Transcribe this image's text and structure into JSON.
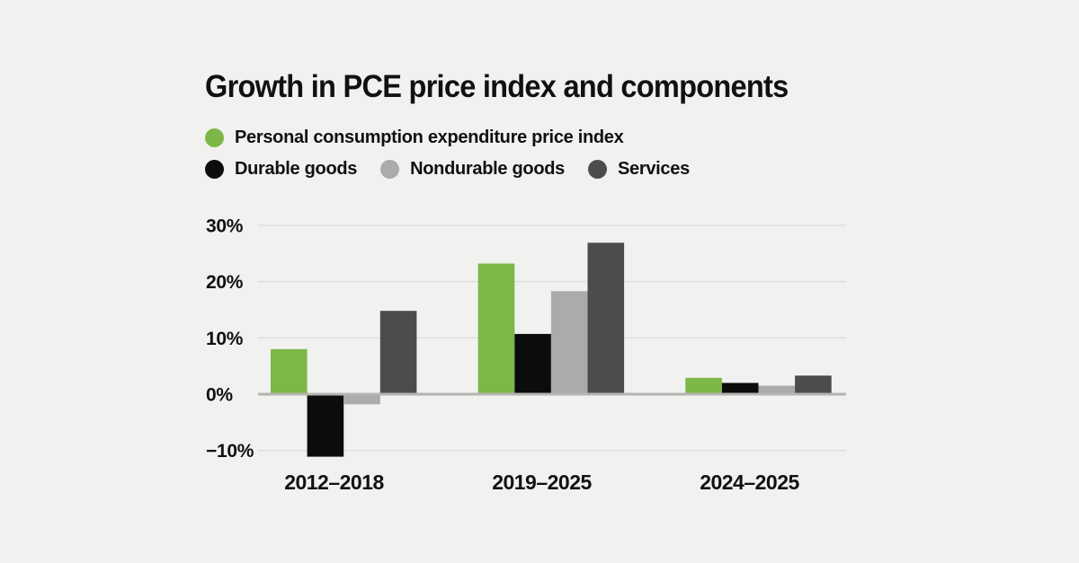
{
  "title": "Growth in PCE price index and components",
  "colors": {
    "background": "#f1f1ef",
    "grid": "#dfdfde",
    "axis": "#b4b4b3",
    "text": "#111111"
  },
  "chart_data": {
    "type": "bar",
    "title": "Growth in PCE price index and components",
    "categories": [
      "2012–2018",
      "2019–2025",
      "2024–2025"
    ],
    "series": [
      {
        "key": "pce",
        "name": "Personal consumption expenditure price index",
        "color": "#7cb847",
        "values": [
          8.0,
          23.2,
          2.9
        ]
      },
      {
        "key": "durable-goods",
        "name": "Durable goods",
        "color": "#0c0c0c",
        "values": [
          -11.1,
          10.7,
          2.0
        ]
      },
      {
        "key": "nondurable-goods",
        "name": "Nondurable goods",
        "color": "#ababab",
        "values": [
          -1.8,
          18.3,
          1.5
        ]
      },
      {
        "key": "services",
        "name": "Services",
        "color": "#4c4c4c",
        "values": [
          14.8,
          26.9,
          3.3
        ]
      }
    ],
    "xlabel": "",
    "ylabel": "",
    "yticks": [
      {
        "value": 30,
        "label": "30%"
      },
      {
        "value": 20,
        "label": "20%"
      },
      {
        "value": 10,
        "label": "10%"
      },
      {
        "value": 0,
        "label": "0%"
      },
      {
        "value": -10,
        "label": "−10%"
      }
    ],
    "ylim": [
      -13,
      32
    ],
    "grid": true,
    "legend_position": "top-left"
  }
}
